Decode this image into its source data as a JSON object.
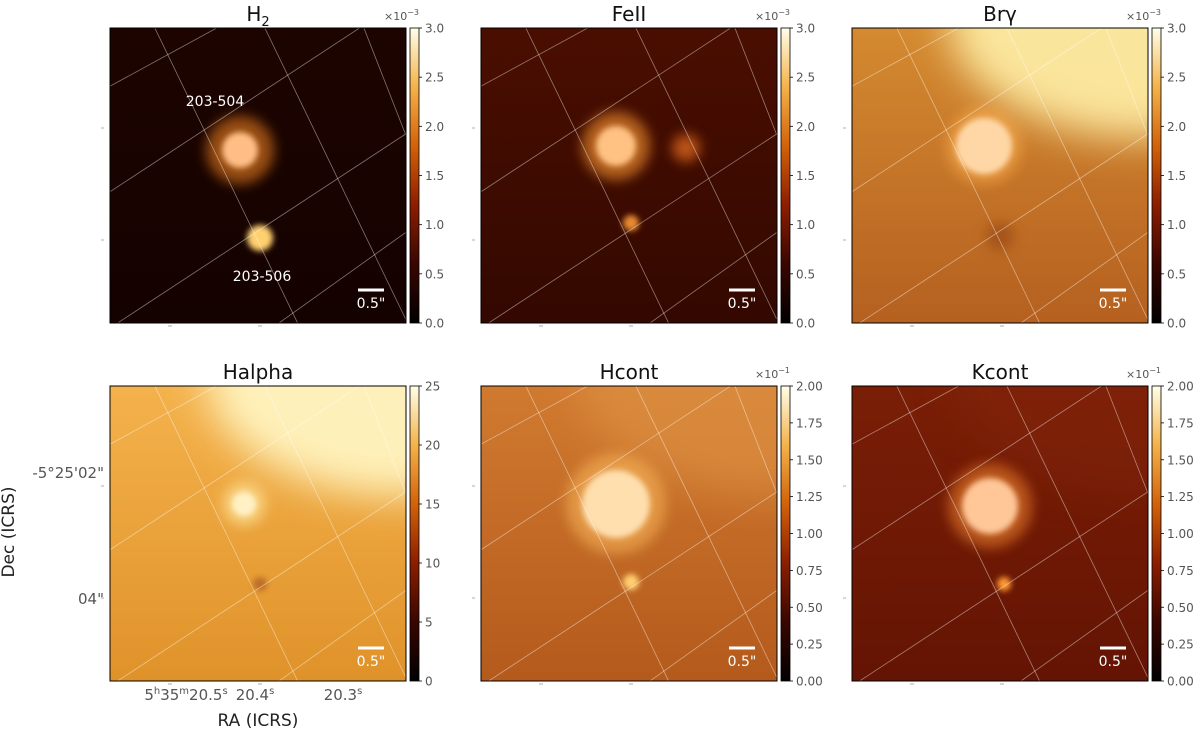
{
  "figure": {
    "y_axis_label": "Dec (ICRS)",
    "x_axis_label": "RA (ICRS)",
    "dec_ticks": [
      "-5°25'02\"",
      "04\""
    ],
    "ra_ticks": [
      {
        "h": "5",
        "hs": "h",
        "m": "35",
        "ms": "m",
        "s": "20.5",
        "ss": "s"
      },
      {
        "s": "20.4",
        "ss": "s"
      },
      {
        "s": "20.3",
        "ss": "s"
      }
    ],
    "scale_bar_label": "0.5\""
  },
  "chart_data": [
    {
      "type": "heatmap",
      "title": "H",
      "title_sub": "2",
      "colorbar": {
        "min": 0,
        "max": 3.0,
        "ticks": [
          "0.0",
          "0.5",
          "1.0",
          "1.5",
          "2.0",
          "2.5",
          "3.0"
        ],
        "multiplier": "×10",
        "multiplier_exp": "−3"
      },
      "annotations": [
        "203-504",
        "203-506"
      ],
      "background": {
        "top": "#1d0400",
        "bottom": "#140200",
        "corner": "#1d0400",
        "corner_opacity": 0
      }
    },
    {
      "type": "heatmap",
      "title": "FeII",
      "title_sub": "",
      "colorbar": {
        "min": 0,
        "max": 3.0,
        "ticks": [
          "0.0",
          "0.5",
          "1.0",
          "1.5",
          "2.0",
          "2.5",
          "3.0"
        ],
        "multiplier": "×10",
        "multiplier_exp": "−3"
      },
      "annotations": [],
      "background": {
        "top": "#4a0e00",
        "bottom": "#330800",
        "corner": "#4a0e00",
        "corner_opacity": 0
      }
    },
    {
      "type": "heatmap",
      "title": "Brγ",
      "title_sub": "",
      "colorbar": {
        "min": 0,
        "max": 3.0,
        "ticks": [
          "0.0",
          "0.5",
          "1.0",
          "1.5",
          "2.0",
          "2.5",
          "3.0"
        ],
        "multiplier": "×10",
        "multiplier_exp": "−3"
      },
      "annotations": [],
      "background": {
        "top": "#d48a30",
        "bottom": "#b56020",
        "corner": "#fff0a8",
        "corner_opacity": 0.9
      }
    },
    {
      "type": "heatmap",
      "title": "Halpha",
      "title_sub": "",
      "colorbar": {
        "min": 0,
        "max": 25,
        "ticks": [
          "0",
          "5",
          "10",
          "15",
          "20",
          "25"
        ],
        "multiplier": "",
        "multiplier_exp": ""
      },
      "annotations": [],
      "background": {
        "top": "#f4b24c",
        "bottom": "#e0922a",
        "corner": "#fff4c0",
        "corner_opacity": 0.95
      }
    },
    {
      "type": "heatmap",
      "title": "Hcont",
      "title_sub": "",
      "colorbar": {
        "min": 0,
        "max": 2.0,
        "ticks": [
          "0.00",
          "0.25",
          "0.50",
          "0.75",
          "1.00",
          "1.25",
          "1.50",
          "1.75",
          "2.00"
        ],
        "multiplier": "×10",
        "multiplier_exp": "−1"
      },
      "annotations": [],
      "background": {
        "top": "#d07a30",
        "bottom": "#b45a1c",
        "corner": "#e49a48",
        "corner_opacity": 0.5
      }
    },
    {
      "type": "heatmap",
      "title": "Kcont",
      "title_sub": "",
      "colorbar": {
        "min": 0,
        "max": 2.0,
        "ticks": [
          "0.00",
          "0.25",
          "0.50",
          "0.75",
          "1.00",
          "1.25",
          "1.50",
          "1.75",
          "2.00"
        ],
        "multiplier": "×10",
        "multiplier_exp": "−1"
      },
      "annotations": [],
      "background": {
        "top": "#7a1e06",
        "bottom": "#641404",
        "corner": "#8a2a0a",
        "corner_opacity": 0.3
      }
    }
  ]
}
